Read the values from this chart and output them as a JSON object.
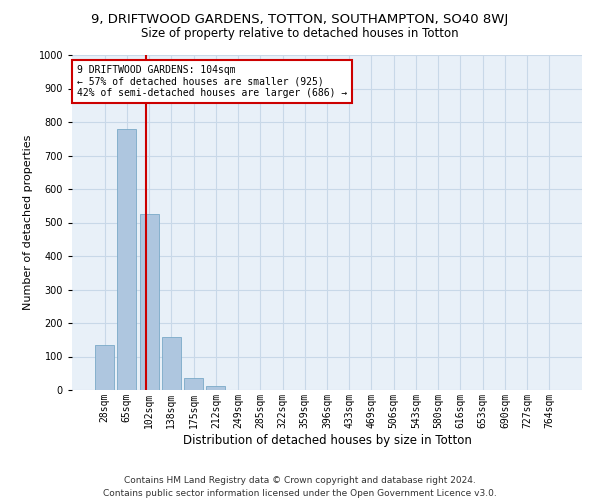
{
  "title1": "9, DRIFTWOOD GARDENS, TOTTON, SOUTHAMPTON, SO40 8WJ",
  "title2": "Size of property relative to detached houses in Totton",
  "xlabel": "Distribution of detached houses by size in Totton",
  "ylabel": "Number of detached properties",
  "bar_values": [
    133,
    778,
    525,
    158,
    37,
    13,
    0,
    0,
    0,
    0,
    0,
    0,
    0,
    0,
    0,
    0,
    0,
    0,
    0,
    0,
    0
  ],
  "bar_labels": [
    "28sqm",
    "65sqm",
    "102sqm",
    "138sqm",
    "175sqm",
    "212sqm",
    "249sqm",
    "285sqm",
    "322sqm",
    "359sqm",
    "396sqm",
    "433sqm",
    "469sqm",
    "506sqm",
    "543sqm",
    "580sqm",
    "616sqm",
    "653sqm",
    "690sqm",
    "727sqm",
    "764sqm"
  ],
  "bar_color": "#aec6df",
  "bar_edge_color": "#7aaac8",
  "vline_color": "#cc0000",
  "annotation_box_text": "9 DRIFTWOOD GARDENS: 104sqm\n← 57% of detached houses are smaller (925)\n42% of semi-detached houses are larger (686) →",
  "annotation_box_color": "#cc0000",
  "annotation_box_fill": "#ffffff",
  "ylim": [
    0,
    1000
  ],
  "yticks": [
    0,
    100,
    200,
    300,
    400,
    500,
    600,
    700,
    800,
    900,
    1000
  ],
  "grid_color": "#c8d8e8",
  "background_color": "#e8f0f8",
  "footer": "Contains HM Land Registry data © Crown copyright and database right 2024.\nContains public sector information licensed under the Open Government Licence v3.0.",
  "title1_fontsize": 9.5,
  "title2_fontsize": 8.5,
  "xlabel_fontsize": 8.5,
  "ylabel_fontsize": 8,
  "tick_fontsize": 7,
  "annotation_fontsize": 7,
  "footer_fontsize": 6.5
}
